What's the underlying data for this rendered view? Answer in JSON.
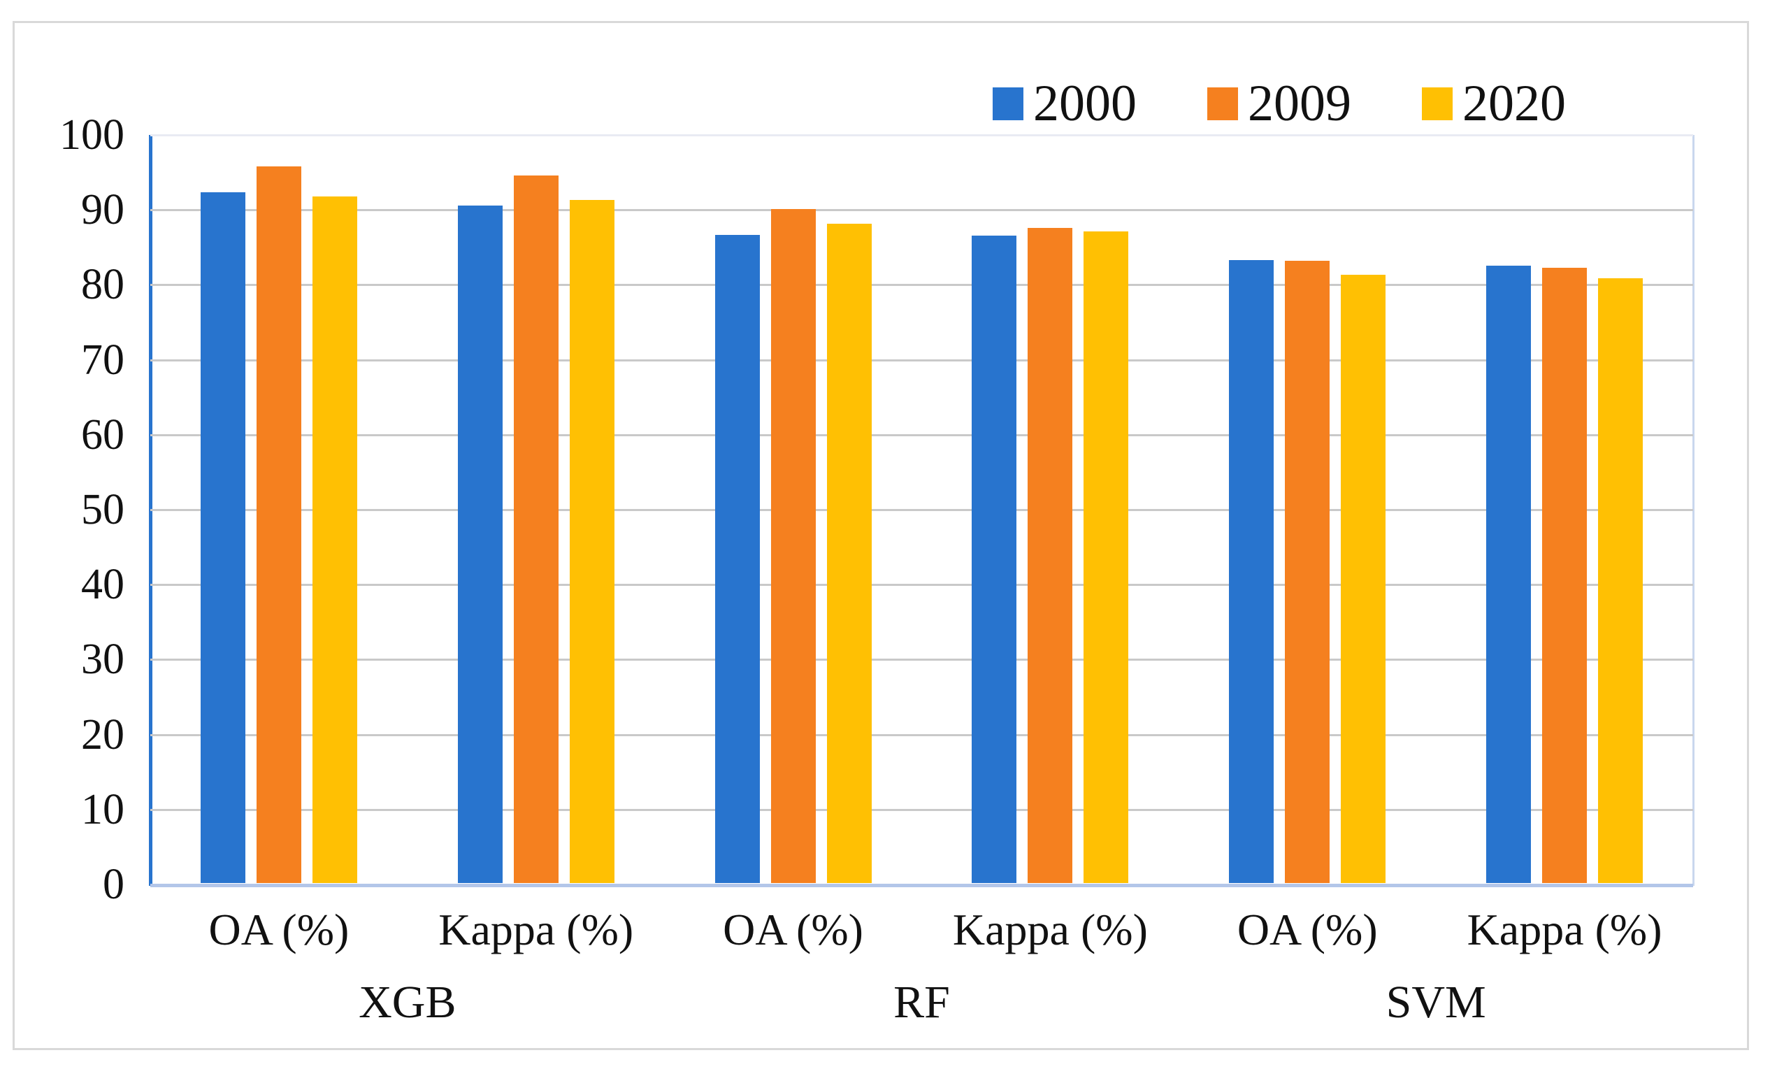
{
  "figure": {
    "background_color": "#ffffff",
    "frame_border_color": "#d9d9d9"
  },
  "axis_style": {
    "y_axis_line_color": "#2874ce",
    "baseline_color": "#b3c6e9",
    "gridline_color": "#c9c9c9",
    "top_gridline_color": "#e9ebf3",
    "right_border_color": "#c9d7ee"
  },
  "chart_data": {
    "type": "bar",
    "title": "",
    "xlabel": "",
    "ylabel": "",
    "categories": [
      "OA (%)",
      "Kappa (%)",
      "OA (%)",
      "Kappa (%)",
      "OA (%)",
      "Kappa (%)"
    ],
    "category_groups": [
      {
        "label": "XGB",
        "category_indexes": [
          0,
          1
        ]
      },
      {
        "label": "RF",
        "category_indexes": [
          2,
          3
        ]
      },
      {
        "label": "SVM",
        "category_indexes": [
          4,
          5
        ]
      }
    ],
    "series": [
      {
        "name": "2000",
        "color": "#2874ce",
        "values": [
          92.2,
          90.4,
          86.5,
          86.4,
          83.1,
          82.4
        ]
      },
      {
        "name": "2009",
        "color": "#f5801f",
        "values": [
          95.6,
          94.4,
          89.9,
          87.4,
          83.0,
          82.1
        ]
      },
      {
        "name": "2020",
        "color": "#ffc003",
        "values": [
          91.6,
          91.1,
          88.0,
          86.9,
          81.2,
          80.7
        ]
      }
    ],
    "ylim": [
      0,
      100
    ],
    "yticks": [
      0,
      10,
      20,
      30,
      40,
      50,
      60,
      70,
      80,
      90,
      100
    ],
    "grid": "horizontal",
    "legend_position": "top-right"
  }
}
